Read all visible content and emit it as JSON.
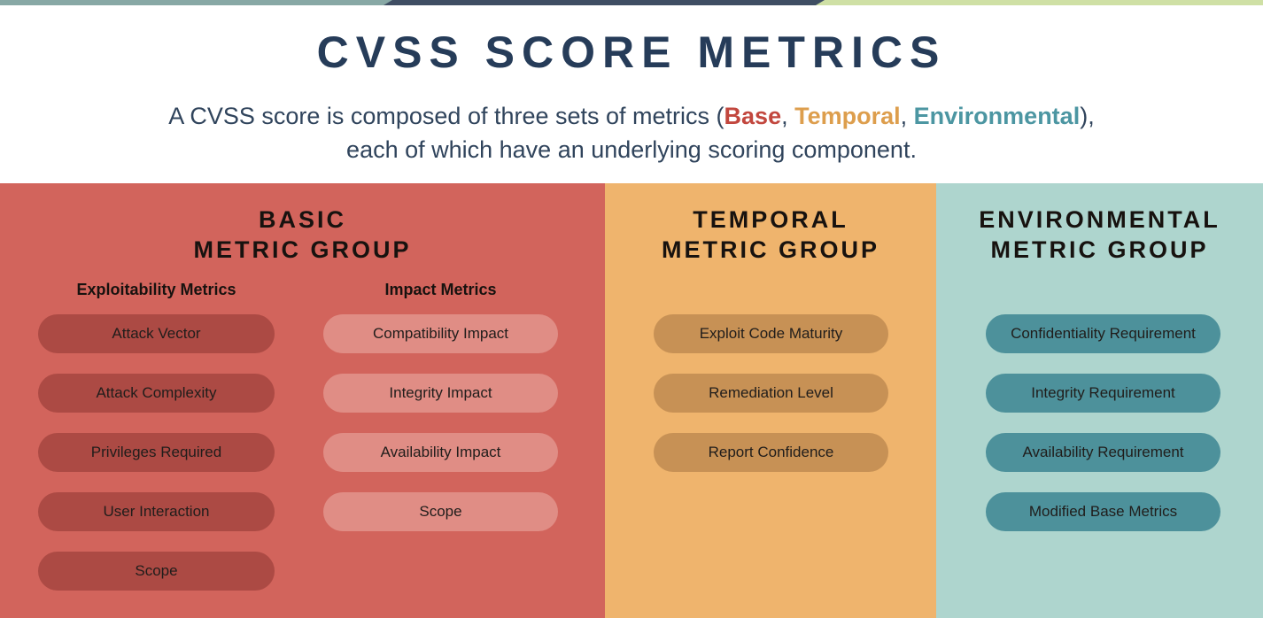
{
  "colors": {
    "topbar-teal": "#88a8a5",
    "topbar-navy": "#3f4e63",
    "topbar-green": "#cfe0a5",
    "title-navy": "#263c59",
    "subtitle-text": "#30445c",
    "base-accent": "#c2473e",
    "temporal-accent": "#dd9e4d",
    "environmental-accent": "#4c96a2",
    "basic-bg": "#d2645c",
    "basic-pill-dark": "#ac4a44",
    "basic-pill-light": "#e08d85",
    "temporal-bg": "#efb46d",
    "temporal-pill": "#c79155",
    "environmental-bg": "#aed5ce",
    "environmental-pill": "#4d919b",
    "ink": "#17120f"
  },
  "header": {
    "title": "CVSS SCORE METRICS",
    "subtitle_prefix": "A CVSS score is composed of three sets of metrics (",
    "base_label": "Base",
    "sep1": ", ",
    "temporal_label": "Temporal",
    "sep2": ", ",
    "environmental_label": "Environmental",
    "subtitle_suffix": "),",
    "subtitle_line2": "each of which have an underlying scoring component."
  },
  "groups": [
    {
      "id": "basic",
      "title_line1": "BASIC",
      "title_line2": "METRIC GROUP",
      "subgroups": [
        {
          "heading": "Exploitability Metrics",
          "pills": [
            "Attack Vector",
            "Attack Complexity",
            "Privileges Required",
            "User Interaction",
            "Scope"
          ]
        },
        {
          "heading": "Impact Metrics",
          "pills": [
            "Compatibility Impact",
            "Integrity Impact",
            "Availability Impact",
            "Scope"
          ]
        }
      ]
    },
    {
      "id": "temporal",
      "title_line1": "TEMPORAL",
      "title_line2": "METRIC GROUP",
      "pills": [
        "Exploit Code Maturity",
        "Remediation Level",
        "Report Confidence"
      ]
    },
    {
      "id": "environmental",
      "title_line1": "ENVIRONMENTAL",
      "title_line2": "METRIC GROUP",
      "pills": [
        "Confidentiality Requirement",
        "Integrity Requirement",
        "Availability Requirement",
        "Modified Base Metrics"
      ]
    }
  ]
}
